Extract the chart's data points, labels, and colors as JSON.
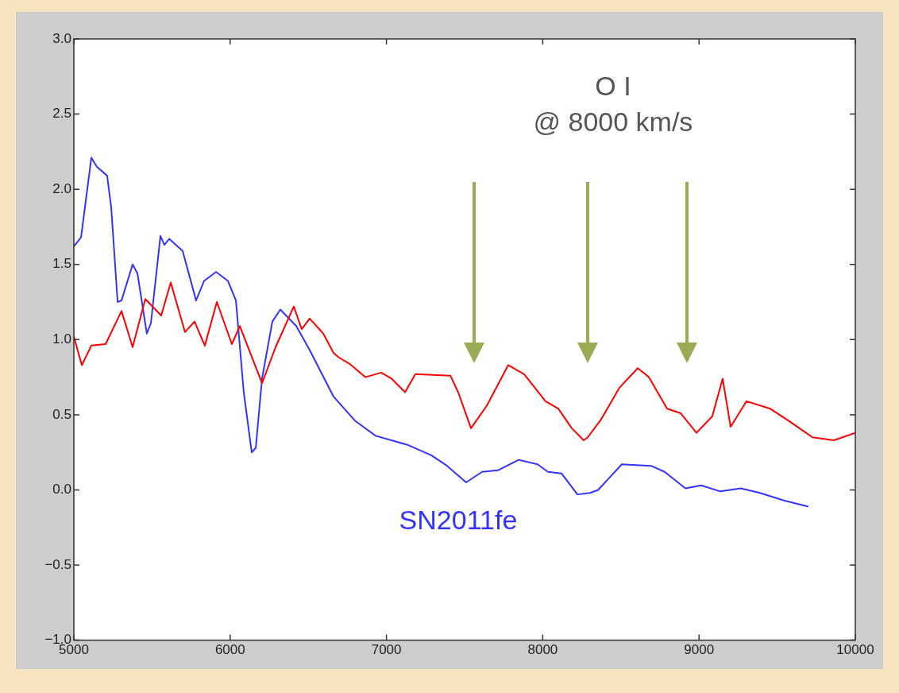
{
  "chart_data": {
    "type": "line",
    "annotations": [
      "O I",
      "@ 8000 km/s"
    ],
    "xlim": [
      5000,
      10000
    ],
    "xticks": [
      5000,
      6000,
      7000,
      8000,
      9000,
      10000
    ],
    "ylim": [
      -1,
      3
    ],
    "yticks": [
      {
        "value": -1,
        "label": "−1.0"
      },
      {
        "value": -0.5,
        "label": "−0.5"
      },
      {
        "value": 0,
        "label": "0.0"
      },
      {
        "value": 0.5,
        "label": "0.5"
      },
      {
        "value": 1,
        "label": "1.0"
      },
      {
        "value": 1.5,
        "label": "1.5"
      },
      {
        "value": 2,
        "label": "2.0"
      },
      {
        "value": 2.5,
        "label": "2.5"
      },
      {
        "value": 3,
        "label": "3.0"
      }
    ],
    "grid": false,
    "legend": false,
    "marker": "none",
    "line_style": "solid",
    "series": [
      {
        "color": "#ff0000",
        "x": [
          5000,
          5051,
          5112,
          5203,
          5305,
          5376,
          5457,
          5559,
          5620,
          5711,
          5772,
          5838,
          5915,
          6011,
          6062,
          6204,
          6291,
          6407,
          6458,
          6509,
          6596,
          6662,
          6697,
          6763,
          6865,
          6966,
          7033,
          7119,
          7185,
          7409,
          7459,
          7541,
          7642,
          7779,
          7881,
          8018,
          8100,
          8186,
          8262,
          8288,
          8374,
          8491,
          8608,
          8679,
          8796,
          8882,
          8984,
          9085,
          9151,
          9202,
          9304,
          9456,
          9573,
          9726,
          9863,
          10000
        ],
        "values": [
          1.02,
          0.83,
          0.96,
          0.97,
          1.19,
          0.95,
          1.27,
          1.16,
          1.38,
          1.05,
          1.12,
          0.96,
          1.25,
          0.97,
          1.09,
          0.71,
          0.95,
          1.22,
          1.07,
          1.14,
          1.04,
          0.91,
          0.88,
          0.84,
          0.75,
          0.78,
          0.74,
          0.65,
          0.77,
          0.76,
          0.65,
          0.41,
          0.56,
          0.83,
          0.77,
          0.59,
          0.54,
          0.41,
          0.33,
          0.35,
          0.47,
          0.68,
          0.81,
          0.75,
          0.54,
          0.51,
          0.38,
          0.49,
          0.74,
          0.42,
          0.59,
          0.54,
          0.46,
          0.35,
          0.33,
          0.38
        ]
      },
      {
        "name": "SN2011fe",
        "color": "#3333ff",
        "x": [
          5000,
          5046,
          5112,
          5147,
          5213,
          5239,
          5280,
          5305,
          5376,
          5407,
          5467,
          5493,
          5554,
          5579,
          5610,
          5696,
          5782,
          5833,
          5910,
          5986,
          6037,
          6087,
          6138,
          6164,
          6204,
          6270,
          6321,
          6423,
          6509,
          6662,
          6799,
          6931,
          7134,
          7287,
          7388,
          7510,
          7612,
          7713,
          7846,
          7967,
          8034,
          8120,
          8222,
          8303,
          8354,
          8506,
          8694,
          8780,
          8913,
          9014,
          9136,
          9268,
          9390,
          9543,
          9695
        ],
        "values": [
          1.62,
          1.68,
          2.21,
          2.15,
          2.09,
          1.88,
          1.25,
          1.26,
          1.5,
          1.44,
          1.04,
          1.11,
          1.69,
          1.63,
          1.67,
          1.59,
          1.26,
          1.39,
          1.45,
          1.39,
          1.26,
          0.65,
          0.25,
          0.28,
          0.74,
          1.12,
          1.2,
          1.09,
          0.93,
          0.62,
          0.46,
          0.36,
          0.3,
          0.23,
          0.16,
          0.05,
          0.12,
          0.13,
          0.2,
          0.17,
          0.12,
          0.11,
          -0.03,
          -0.02,
          0.0,
          0.17,
          0.16,
          0.12,
          0.01,
          0.03,
          -0.01,
          0.01,
          -0.02,
          -0.07,
          -0.11
        ]
      }
    ]
  }
}
